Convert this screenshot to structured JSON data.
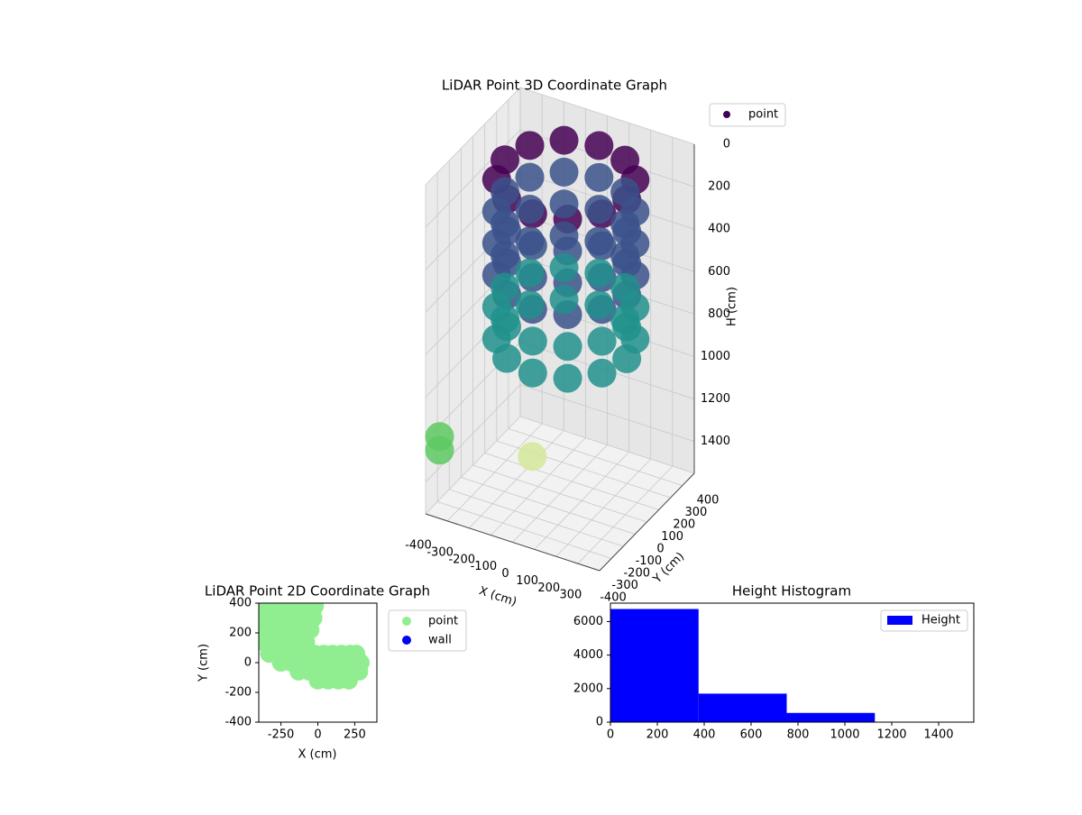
{
  "chart_data": [
    {
      "type": "scatter3d",
      "title": "LiDAR Point 3D Coordinate Graph",
      "xlabel": "X (cm)",
      "ylabel": "Y (cm)",
      "zlabel": "H (cm)",
      "xlim": [
        -400,
        400
      ],
      "ylim": [
        -400,
        400
      ],
      "zlim": [
        1550,
        0
      ],
      "xticks": [
        -400,
        -300,
        -200,
        -100,
        0,
        100,
        200,
        300
      ],
      "yticks": [
        -400,
        -300,
        -200,
        -100,
        0,
        100,
        200,
        300,
        400
      ],
      "zticks": [
        0,
        200,
        400,
        600,
        800,
        1000,
        1200,
        1400
      ],
      "grid": true,
      "legend": "upper right",
      "colormap": [
        "#440154",
        "#3b528b",
        "#21918c",
        "#5ec962",
        "#d5e89a"
      ],
      "series": [
        {
          "name": "point",
          "color": "#440154",
          "x": [
            280,
            242,
            140,
            0,
            -140,
            -242,
            -280,
            -242,
            -140,
            0,
            140,
            242,
            280,
            242,
            140,
            0,
            -140,
            -242,
            -280,
            -242,
            -140,
            0,
            140,
            242,
            280,
            242,
            140,
            0,
            -140,
            -242,
            -280,
            -242,
            -140,
            0,
            140,
            242,
            280,
            242,
            140,
            0,
            -140,
            -242,
            -280,
            -242,
            -140,
            0,
            140,
            242,
            280,
            242,
            140,
            0,
            -140,
            -242,
            -280,
            -242,
            -140,
            0,
            140,
            242,
            280,
            242,
            140,
            0,
            -140,
            -242,
            -280,
            -242,
            -140,
            0,
            140,
            242,
            -390,
            -390,
            -100
          ],
          "y": [
            50,
            190,
            292,
            330,
            292,
            190,
            50,
            -90,
            -192,
            -230,
            -192,
            -90,
            50,
            190,
            292,
            330,
            292,
            190,
            50,
            -90,
            -192,
            -230,
            -192,
            -90,
            50,
            190,
            292,
            330,
            292,
            190,
            50,
            -90,
            -192,
            -230,
            -192,
            -90,
            50,
            190,
            292,
            330,
            292,
            190,
            50,
            -90,
            -192,
            -230,
            -192,
            -90,
            50,
            190,
            292,
            330,
            292,
            190,
            50,
            -90,
            -192,
            -230,
            -192,
            -90,
            50,
            190,
            292,
            330,
            292,
            190,
            50,
            -90,
            -192,
            -230,
            -192,
            -90,
            -300,
            -300,
            -50
          ],
          "z": [
            100,
            100,
            100,
            100,
            100,
            100,
            100,
            100,
            100,
            100,
            100,
            100,
            250,
            250,
            250,
            250,
            250,
            250,
            250,
            250,
            250,
            250,
            250,
            250,
            400,
            400,
            400,
            400,
            400,
            400,
            400,
            400,
            400,
            400,
            400,
            400,
            550,
            550,
            550,
            550,
            550,
            550,
            550,
            550,
            550,
            550,
            550,
            550,
            700,
            700,
            700,
            700,
            700,
            700,
            700,
            700,
            700,
            700,
            700,
            700,
            850,
            850,
            850,
            850,
            850,
            850,
            850,
            850,
            850,
            850,
            850,
            850,
            1240,
            1304,
            1380
          ]
        }
      ]
    },
    {
      "type": "scatter",
      "title": "LiDAR Point 2D Coordinate Graph",
      "xlabel": "X (cm)",
      "ylabel": "Y (cm)",
      "xlim": [
        -400,
        400
      ],
      "ylim": [
        -400,
        400
      ],
      "xticks": [
        -250,
        0,
        250
      ],
      "yticks": [
        -400,
        -200,
        0,
        200,
        400
      ],
      "legend": "outside right",
      "series": [
        {
          "name": "point",
          "color": "#90ee90",
          "x": [
            -380,
            -320,
            -260,
            -200,
            -140,
            -80,
            -20,
            -380,
            -320,
            -260,
            -200,
            -140,
            -80,
            -30,
            -380,
            -320,
            -260,
            -200,
            -140,
            -80,
            -50,
            -380,
            -320,
            -260,
            -200,
            -140,
            -80,
            -330,
            -260,
            -200,
            -140,
            -80,
            -20,
            40,
            100,
            160,
            220,
            260,
            -250,
            -180,
            -110,
            -40,
            30,
            100,
            170,
            240,
            290,
            -130,
            -60,
            10,
            80,
            150,
            220,
            280,
            0,
            70,
            140,
            210
          ],
          "y": [
            380,
            380,
            380,
            380,
            380,
            380,
            380,
            300,
            300,
            300,
            300,
            300,
            300,
            300,
            220,
            220,
            220,
            220,
            220,
            220,
            220,
            140,
            140,
            140,
            140,
            140,
            140,
            60,
            60,
            60,
            60,
            60,
            60,
            60,
            60,
            60,
            60,
            60,
            0,
            0,
            0,
            0,
            0,
            0,
            0,
            0,
            0,
            -60,
            -60,
            -60,
            -60,
            -60,
            -60,
            -60,
            -120,
            -120,
            -120,
            -120
          ]
        },
        {
          "name": "wall",
          "color": "#0000ff",
          "x": [],
          "y": []
        }
      ]
    },
    {
      "type": "histogram",
      "title": "Height Histogram",
      "bins": [
        0,
        376,
        752,
        1128,
        1504
      ],
      "values": [
        6750,
        1700,
        550,
        5
      ],
      "xlim": [
        0,
        1550
      ],
      "ylim": [
        0,
        7100
      ],
      "xticks": [
        0,
        200,
        400,
        600,
        800,
        1000,
        1200,
        1400
      ],
      "yticks": [
        0,
        2000,
        4000,
        6000
      ],
      "legend": "upper right",
      "series_name": "Height",
      "color": "#0000ff"
    }
  ]
}
